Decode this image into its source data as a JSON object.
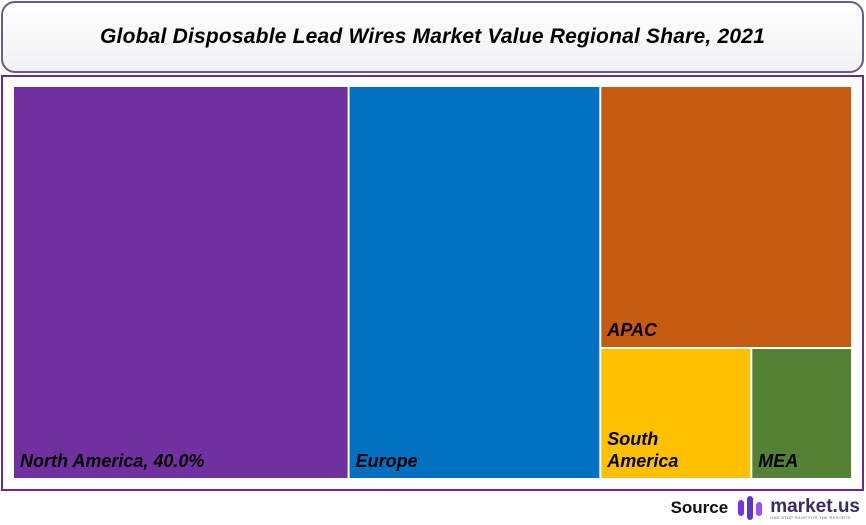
{
  "title": "Global Disposable Lead Wires Market Value Regional Share, 2021",
  "source": {
    "label": "Source",
    "brand": "market.us",
    "tagline": "ONE STOP SHOP FOR THE REPORTS"
  },
  "colors": {
    "north_america": "#7030a0",
    "europe": "#0070c0",
    "apac": "#c55a11",
    "south_america": "#ffc000",
    "mea": "#548235",
    "frame": "#6b2a8e",
    "brand": "#7b2ff2"
  },
  "chart_data": {
    "type": "treemap",
    "title": "Global Disposable Lead Wires Market Value Regional Share, 2021",
    "unit": "%",
    "items": [
      {
        "name": "North America",
        "label": "North America, 40.0%",
        "value": 40.0
      },
      {
        "name": "Europe",
        "label": "Europe",
        "value": 30.0
      },
      {
        "name": "APAC",
        "label": "APAC",
        "value": 20.0
      },
      {
        "name": "South America",
        "label": "South America",
        "value": 6.0
      },
      {
        "name": "MEA",
        "label": "MEA",
        "value": 4.0
      }
    ]
  }
}
